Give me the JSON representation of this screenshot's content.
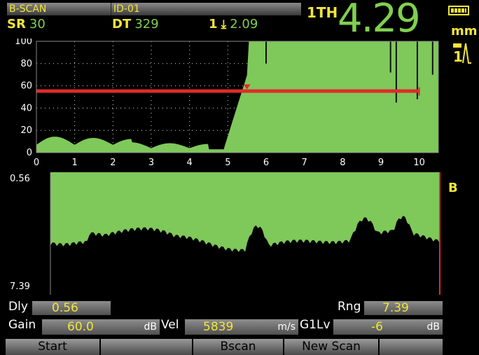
{
  "header": {
    "mode": "B-SCAN",
    "id": "ID-01",
    "sr_label": "SR",
    "sr_value": "30",
    "dt_label": "DT",
    "dt_value": "329",
    "gate_label": "1",
    "gate_value": "2.09",
    "thickness_label": "1TH",
    "thickness_value": "4.29",
    "unit": "mm"
  },
  "ascan": {
    "x_ticks": [
      "0",
      "1",
      "2",
      "3",
      "4",
      "5",
      "6",
      "7",
      "8",
      "9",
      "10"
    ],
    "y_ticks": [
      "100",
      "80",
      "60",
      "40",
      "20",
      "0"
    ],
    "gate_start": 5.5,
    "gate_end": 10.0,
    "gate_level": 55
  },
  "bscan": {
    "top_label": "0.56",
    "bottom_label": "7.39",
    "side_label": "B"
  },
  "params": {
    "dly_label": "Dly",
    "dly_value": "0.56",
    "rng_label": "Rng",
    "rng_value": "7.39",
    "gain_label": "Gain",
    "gain_value": "60.0",
    "gain_unit": "dB",
    "vel_label": "Vel",
    "vel_value": "5839",
    "vel_unit": "m/s",
    "g1lv_label": "G1Lv",
    "g1lv_value": "-6",
    "g1lv_unit": "dB"
  },
  "softkeys": [
    "Start",
    "",
    "Bscan",
    "New Scan",
    ""
  ],
  "colors": {
    "signal": "#7fc85a",
    "gate": "#e02a2a",
    "label": "#f2e53a"
  }
}
